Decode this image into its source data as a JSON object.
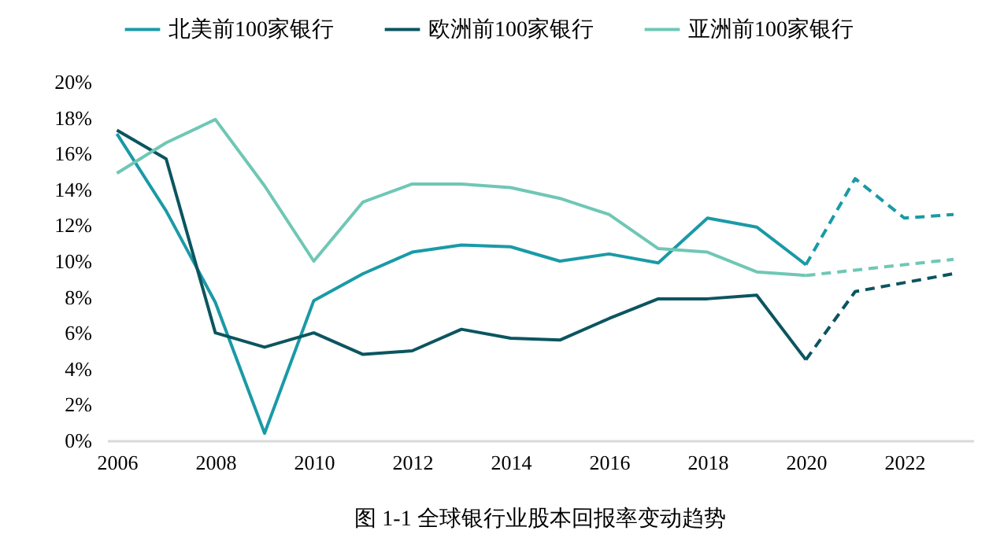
{
  "chart_data": {
    "type": "line",
    "title": "图 1-1  全球银行业股本回报率变动趋势",
    "legend": "top",
    "marker": "none",
    "grid": false,
    "xlim": [
      2005.8,
      2023.4
    ],
    "xticks": [
      2006,
      2008,
      2010,
      2012,
      2014,
      2016,
      2018,
      2020,
      2022
    ],
    "ylim": [
      0,
      20
    ],
    "yticks": [
      {
        "value": 0,
        "label": "0%"
      },
      {
        "value": 2,
        "label": "2%"
      },
      {
        "value": 4,
        "label": "4%"
      },
      {
        "value": 6,
        "label": "6%"
      },
      {
        "value": 8,
        "label": "8%"
      },
      {
        "value": 10,
        "label": "10%"
      },
      {
        "value": 12,
        "label": "12%"
      },
      {
        "value": 14,
        "label": "14%"
      },
      {
        "value": 16,
        "label": "16%"
      },
      {
        "value": 18,
        "label": "18%"
      },
      {
        "value": 20,
        "label": "20%"
      }
    ],
    "series": [
      {
        "name": "北美前100家银行",
        "color": "#1a9aa6",
        "line_style": "solid",
        "x": [
          2006,
          2007,
          2008,
          2009,
          2010,
          2011,
          2012,
          2013,
          2014,
          2015,
          2016,
          2017,
          2018,
          2019,
          2020
        ],
        "values": [
          17.1,
          12.8,
          7.7,
          0.4,
          7.8,
          9.3,
          10.5,
          10.9,
          10.8,
          10.0,
          10.4,
          9.9,
          12.4,
          11.9,
          9.8
        ]
      },
      {
        "name": "欧洲前100家银行",
        "color": "#0b5560",
        "line_style": "solid",
        "x": [
          2006,
          2007,
          2008,
          2009,
          2010,
          2011,
          2012,
          2013,
          2014,
          2015,
          2016,
          2017,
          2018,
          2019,
          2020
        ],
        "values": [
          17.3,
          15.7,
          6.0,
          5.2,
          6.0,
          4.8,
          5.0,
          6.2,
          5.7,
          5.6,
          6.8,
          7.9,
          7.9,
          8.1,
          4.5
        ]
      },
      {
        "name": "亚洲前100家银行",
        "color": "#6fc7b5",
        "line_style": "solid",
        "x": [
          2006,
          2007,
          2008,
          2009,
          2010,
          2011,
          2012,
          2013,
          2014,
          2015,
          2016,
          2017,
          2018,
          2019,
          2020
        ],
        "values": [
          14.9,
          16.6,
          17.9,
          14.2,
          10.0,
          13.3,
          14.3,
          14.3,
          14.1,
          13.5,
          12.6,
          10.7,
          10.5,
          9.4,
          9.2
        ]
      },
      {
        "color": "#1a9aa6",
        "line_style": "dashed",
        "x": [
          2020,
          2021,
          2022,
          2023
        ],
        "values": [
          9.8,
          14.6,
          12.4,
          12.6
        ]
      },
      {
        "color": "#0b5560",
        "line_style": "dashed",
        "x": [
          2020,
          2021,
          2022,
          2023
        ],
        "values": [
          4.5,
          8.3,
          8.8,
          9.3
        ]
      },
      {
        "color": "#6fc7b5",
        "line_style": "dashed",
        "x": [
          2020,
          2021,
          2022,
          2023
        ],
        "values": [
          9.2,
          9.5,
          9.8,
          10.1
        ]
      }
    ]
  }
}
